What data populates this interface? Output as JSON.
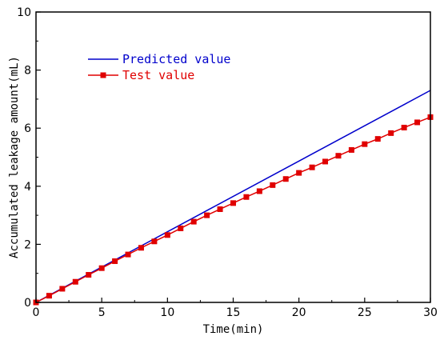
{
  "chart_data": {
    "type": "line",
    "xlabel": "Time(min)",
    "ylabel": "Accumulated leakage amount(mL)",
    "xlim": [
      0,
      30
    ],
    "ylim": [
      0,
      10
    ],
    "xticks": [
      0,
      5,
      10,
      15,
      20,
      25,
      30
    ],
    "yticks": [
      0,
      2,
      4,
      6,
      8,
      10
    ],
    "grid": false,
    "legend_position": "top-left",
    "series": [
      {
        "name": "Predicted value",
        "color": "#0000cc",
        "marker": "none",
        "x": [
          0,
          30
        ],
        "y": [
          0,
          7.3
        ]
      },
      {
        "name": "Test value",
        "color": "#e00000",
        "marker": "square",
        "x": [
          0,
          1,
          2,
          3,
          4,
          5,
          6,
          7,
          8,
          9,
          10,
          11,
          12,
          13,
          14,
          15,
          16,
          17,
          18,
          19,
          20,
          21,
          22,
          23,
          24,
          25,
          26,
          27,
          28,
          29,
          30
        ],
        "y": [
          0,
          0.23,
          0.47,
          0.71,
          0.95,
          1.18,
          1.42,
          1.65,
          1.88,
          2.1,
          2.32,
          2.55,
          2.78,
          3.0,
          3.21,
          3.42,
          3.63,
          3.83,
          4.04,
          4.25,
          4.46,
          4.65,
          4.85,
          5.05,
          5.25,
          5.45,
          5.63,
          5.83,
          6.02,
          6.2,
          6.38
        ]
      }
    ]
  }
}
